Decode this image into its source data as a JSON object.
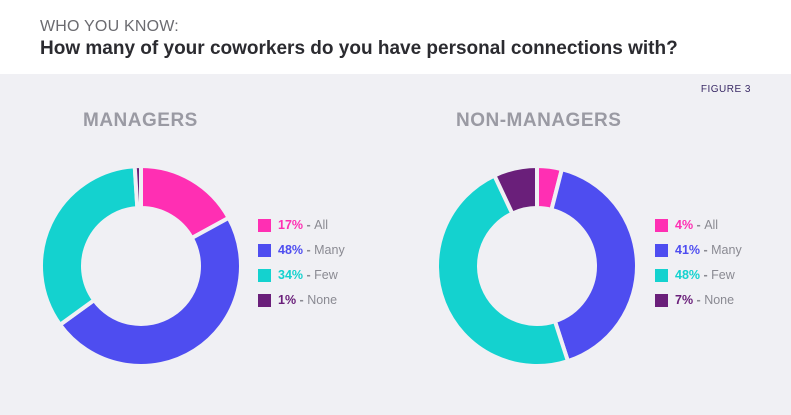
{
  "header": {
    "kicker": "WHO YOU KNOW:",
    "title": "How many of your coworkers do you have personal connections with?"
  },
  "figure_label": "FIGURE 3",
  "colors": {
    "all": "#ff2fb3",
    "many": "#4e4df0",
    "few": "#14d2cf",
    "none": "#6a1f7a"
  },
  "chart_data": [
    {
      "type": "pie",
      "title": "MANAGERS",
      "categories": [
        "All",
        "Many",
        "Few",
        "None"
      ],
      "values": [
        17,
        48,
        34,
        1
      ],
      "labels": [
        "17%",
        "48%",
        "34%",
        "1%"
      ]
    },
    {
      "type": "pie",
      "title": "NON-MANAGERS",
      "categories": [
        "All",
        "Many",
        "Few",
        "None"
      ],
      "values": [
        4,
        41,
        48,
        7
      ],
      "labels": [
        "4%",
        "41%",
        "48%",
        "7%"
      ]
    }
  ]
}
